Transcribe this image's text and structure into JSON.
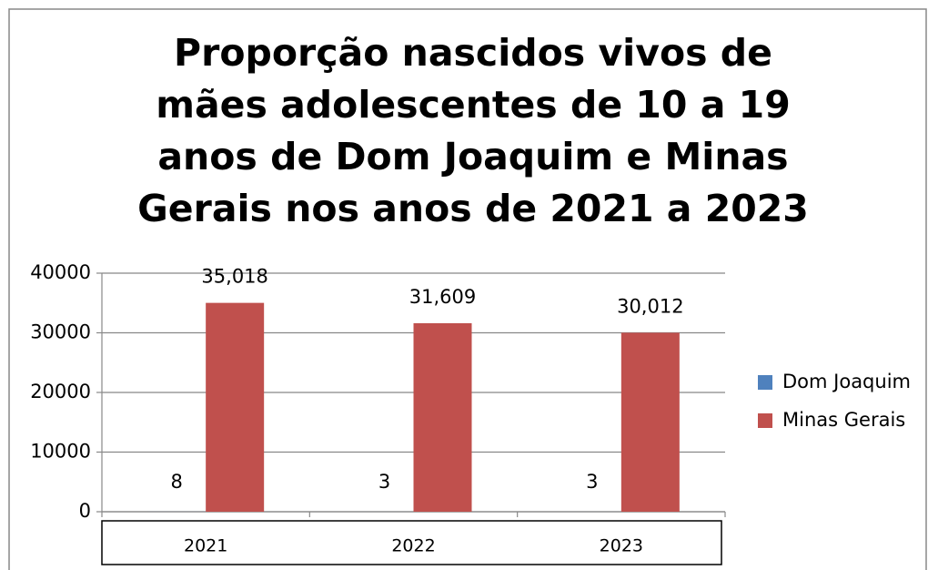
{
  "chart_data": {
    "type": "bar",
    "title": "Proporção nascidos vivos de mães adolescentes de 10 a 19 anos de Dom Joaquim e Minas Gerais nos anos de 2021 a 2023",
    "categories": [
      "2021",
      "2022",
      "2023"
    ],
    "series": [
      {
        "name": "Dom Joaquim",
        "color": "#4f81bd",
        "values": [
          8,
          3,
          3
        ]
      },
      {
        "name": "Minas Gerais",
        "color": "#c0504d",
        "values": [
          35018,
          31609,
          30012
        ],
        "value_labels": [
          "35,018",
          "31,609",
          "30,012"
        ]
      }
    ],
    "ylim": [
      0,
      40000
    ],
    "yticks": [
      0,
      10000,
      20000,
      30000,
      40000
    ],
    "grid": true,
    "legend": "right"
  }
}
